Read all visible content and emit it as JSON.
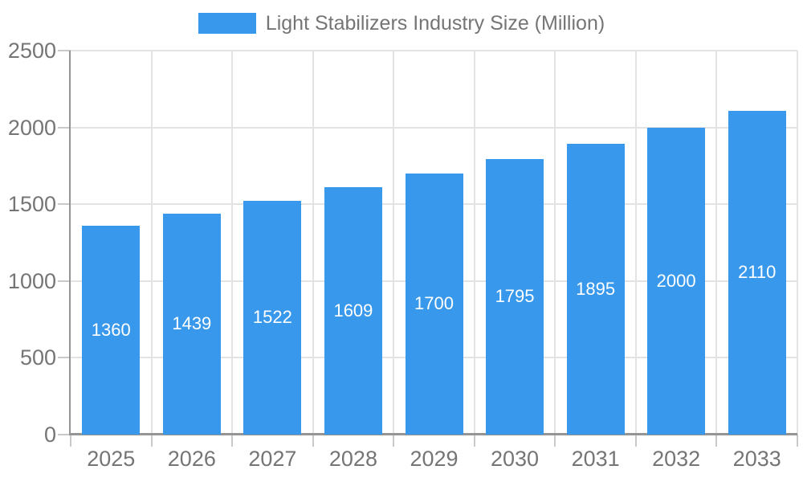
{
  "colors": {
    "bar": "#3898ec",
    "grid": "#e3e3e3",
    "axis": "#949494",
    "tick": "#c9c9c9",
    "text": "#757575",
    "bar_label": "#ffffff"
  },
  "chart_data": {
    "type": "bar",
    "title": "Light Stabilizers Industry Size (Million)",
    "xlabel": "",
    "ylabel": "",
    "categories": [
      "2025",
      "2026",
      "2027",
      "2028",
      "2029",
      "2030",
      "2031",
      "2032",
      "2033"
    ],
    "values": [
      1360,
      1439,
      1522,
      1609,
      1700,
      1795,
      1895,
      2000,
      2110
    ],
    "ylim": [
      0,
      2500
    ],
    "yticks": [
      0,
      500,
      1000,
      1500,
      2000,
      2500
    ],
    "grid": true,
    "legend_position": "top",
    "bar_labels": "inside-centered"
  }
}
